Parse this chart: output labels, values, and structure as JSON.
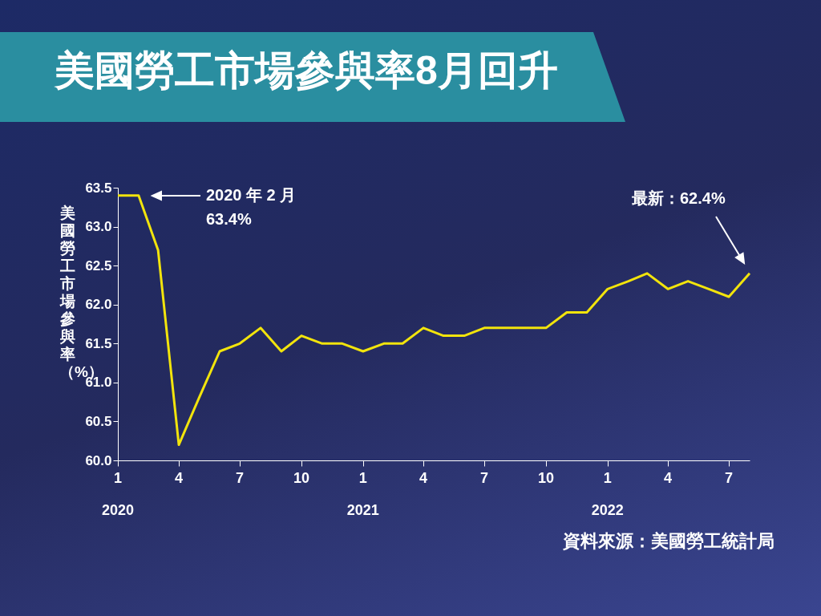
{
  "chart_data": {
    "type": "line",
    "title": "美國勞工市場參與率8月回升",
    "ylabel": "美國勞工市場參與率（%）",
    "x": [
      "2020-01",
      "2020-02",
      "2020-03",
      "2020-04",
      "2020-05",
      "2020-06",
      "2020-07",
      "2020-08",
      "2020-09",
      "2020-10",
      "2020-11",
      "2020-12",
      "2021-01",
      "2021-02",
      "2021-03",
      "2021-04",
      "2021-05",
      "2021-06",
      "2021-07",
      "2021-08",
      "2021-09",
      "2021-10",
      "2021-11",
      "2021-12",
      "2022-01",
      "2022-02",
      "2022-03",
      "2022-04",
      "2022-05",
      "2022-06",
      "2022-07",
      "2022-08"
    ],
    "series": [
      {
        "color": "#f2e40c",
        "values": [
          63.4,
          63.4,
          62.7,
          60.2,
          60.8,
          61.4,
          61.5,
          61.7,
          61.4,
          61.6,
          61.5,
          61.5,
          61.4,
          61.5,
          61.5,
          61.7,
          61.6,
          61.6,
          61.7,
          61.7,
          61.7,
          61.7,
          61.9,
          61.9,
          62.2,
          62.3,
          62.4,
          62.2,
          62.3,
          62.2,
          62.1,
          62.4
        ]
      }
    ],
    "xlim": [
      "2020-01",
      "2022-08"
    ],
    "xticks": [
      {
        "value": "2020-01",
        "label": "1\n2020"
      },
      {
        "value": "2020-04",
        "label": "4"
      },
      {
        "value": "2020-07",
        "label": "7"
      },
      {
        "value": "2020-10",
        "label": "10"
      },
      {
        "value": "2021-01",
        "label": "1\n2021"
      },
      {
        "value": "2021-04",
        "label": "4"
      },
      {
        "value": "2021-07",
        "label": "7"
      },
      {
        "value": "2021-10",
        "label": "10"
      },
      {
        "value": "2022-01",
        "label": "1\n2022"
      },
      {
        "value": "2022-04",
        "label": "4"
      },
      {
        "value": "2022-07",
        "label": "7"
      }
    ],
    "ylim": [
      60,
      63.5
    ],
    "yticks": [
      {
        "value": 60,
        "label": "60.0"
      },
      {
        "value": 60.5,
        "label": "60.5"
      },
      {
        "value": 61,
        "label": "61.0"
      },
      {
        "value": 61.5,
        "label": "61.5"
      },
      {
        "value": 62,
        "label": "62.0"
      },
      {
        "value": 62.5,
        "label": "62.5"
      },
      {
        "value": 63,
        "label": "63.0"
      },
      {
        "value": 63.5,
        "label": "63.5"
      }
    ],
    "grid": false,
    "marker": "none",
    "line_style": "solid",
    "annotations": [
      "2020 年 2 月\n63.4%",
      "最新：62.4%",
      "資料來源：美國勞工統計局"
    ]
  }
}
